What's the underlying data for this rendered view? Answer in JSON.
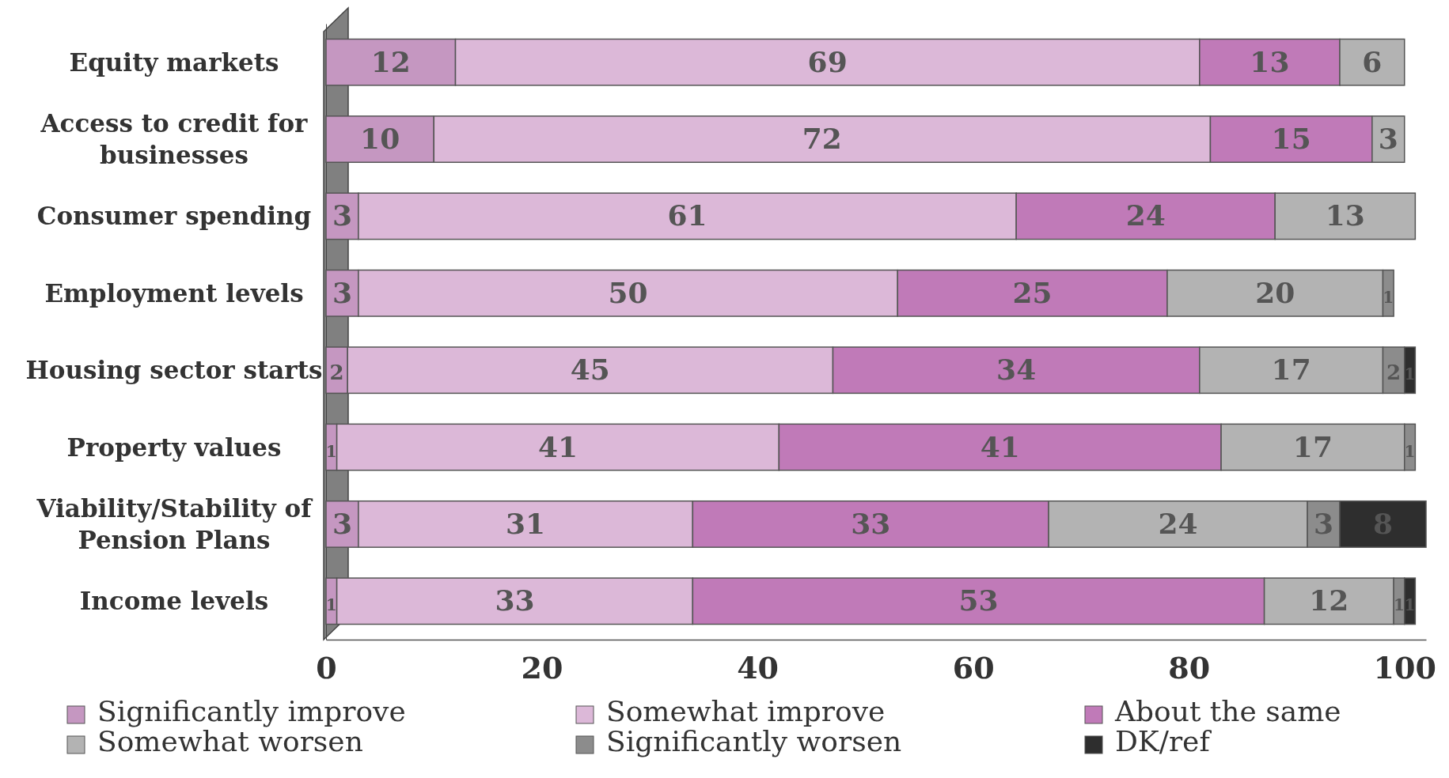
{
  "chart_data": {
    "type": "bar",
    "orientation": "horizontal",
    "stacked": true,
    "categories": [
      "Equity markets",
      "Access to credit for businesses",
      "Consumer spending",
      "Employment levels",
      "Housing sector starts",
      "Property values",
      "Viability/Stability of Pension Plans",
      "Income levels"
    ],
    "series": [
      {
        "name": "Significantly improve",
        "color": "#c597c1",
        "values": [
          12,
          10,
          3,
          3,
          2,
          1,
          3,
          1
        ]
      },
      {
        "name": "Somewhat improve",
        "color": "#dcb8d8",
        "values": [
          69,
          72,
          61,
          50,
          45,
          41,
          31,
          33
        ]
      },
      {
        "name": "About the same",
        "color": "#c07ab8",
        "values": [
          13,
          15,
          24,
          25,
          34,
          41,
          33,
          53
        ]
      },
      {
        "name": "Somewhat worsen",
        "color": "#b3b3b3",
        "values": [
          6,
          3,
          13,
          20,
          17,
          17,
          24,
          12
        ]
      },
      {
        "name": "Significantly worsen",
        "color": "#8c8c8c",
        "values": [
          null,
          null,
          null,
          1,
          2,
          1,
          3,
          1
        ]
      },
      {
        "name": "DK/ref",
        "color": "#2e2e2e",
        "values": [
          null,
          null,
          null,
          null,
          1,
          null,
          8,
          1
        ]
      }
    ],
    "xlim": [
      0,
      102
    ],
    "xticks": [
      0,
      20,
      40,
      60,
      80,
      100
    ],
    "grid": false,
    "legend": "bottom",
    "data_labels": true
  }
}
